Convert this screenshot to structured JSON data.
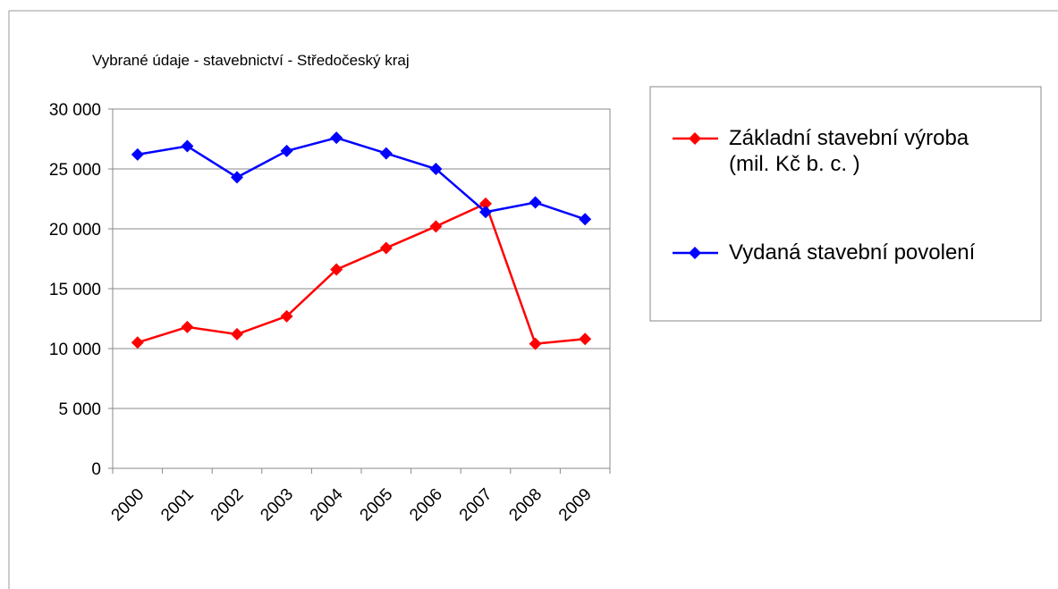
{
  "chart_data": {
    "type": "line",
    "title": "Vybrané údaje - stavebnictví - Středočeský kraj",
    "categories": [
      "2000",
      "2001",
      "2002",
      "2003",
      "2004",
      "2005",
      "2006",
      "2007",
      "2008",
      "2009"
    ],
    "series": [
      {
        "name": "Základní stavební výroba (mil. Kč b. c. )",
        "color": "#ff0000",
        "values": [
          10500,
          11800,
          11200,
          12700,
          16600,
          18400,
          20200,
          22100,
          10400,
          10800
        ]
      },
      {
        "name": "Vydaná stavební povolení",
        "color": "#0000ff",
        "values": [
          26200,
          26900,
          24300,
          26500,
          27600,
          26300,
          25000,
          21400,
          22200,
          20800
        ]
      }
    ],
    "ylim": [
      0,
      30000
    ],
    "yticks": [
      0,
      {
        "value": 5000,
        "label": "5 000"
      },
      {
        "value": 10000,
        "label": "10 000"
      },
      {
        "value": 15000,
        "label": "15 000"
      },
      {
        "value": 20000,
        "label": "20 000"
      },
      {
        "value": 25000,
        "label": "25 000"
      },
      {
        "value": 30000,
        "label": "30 000"
      }
    ],
    "grid": true
  }
}
